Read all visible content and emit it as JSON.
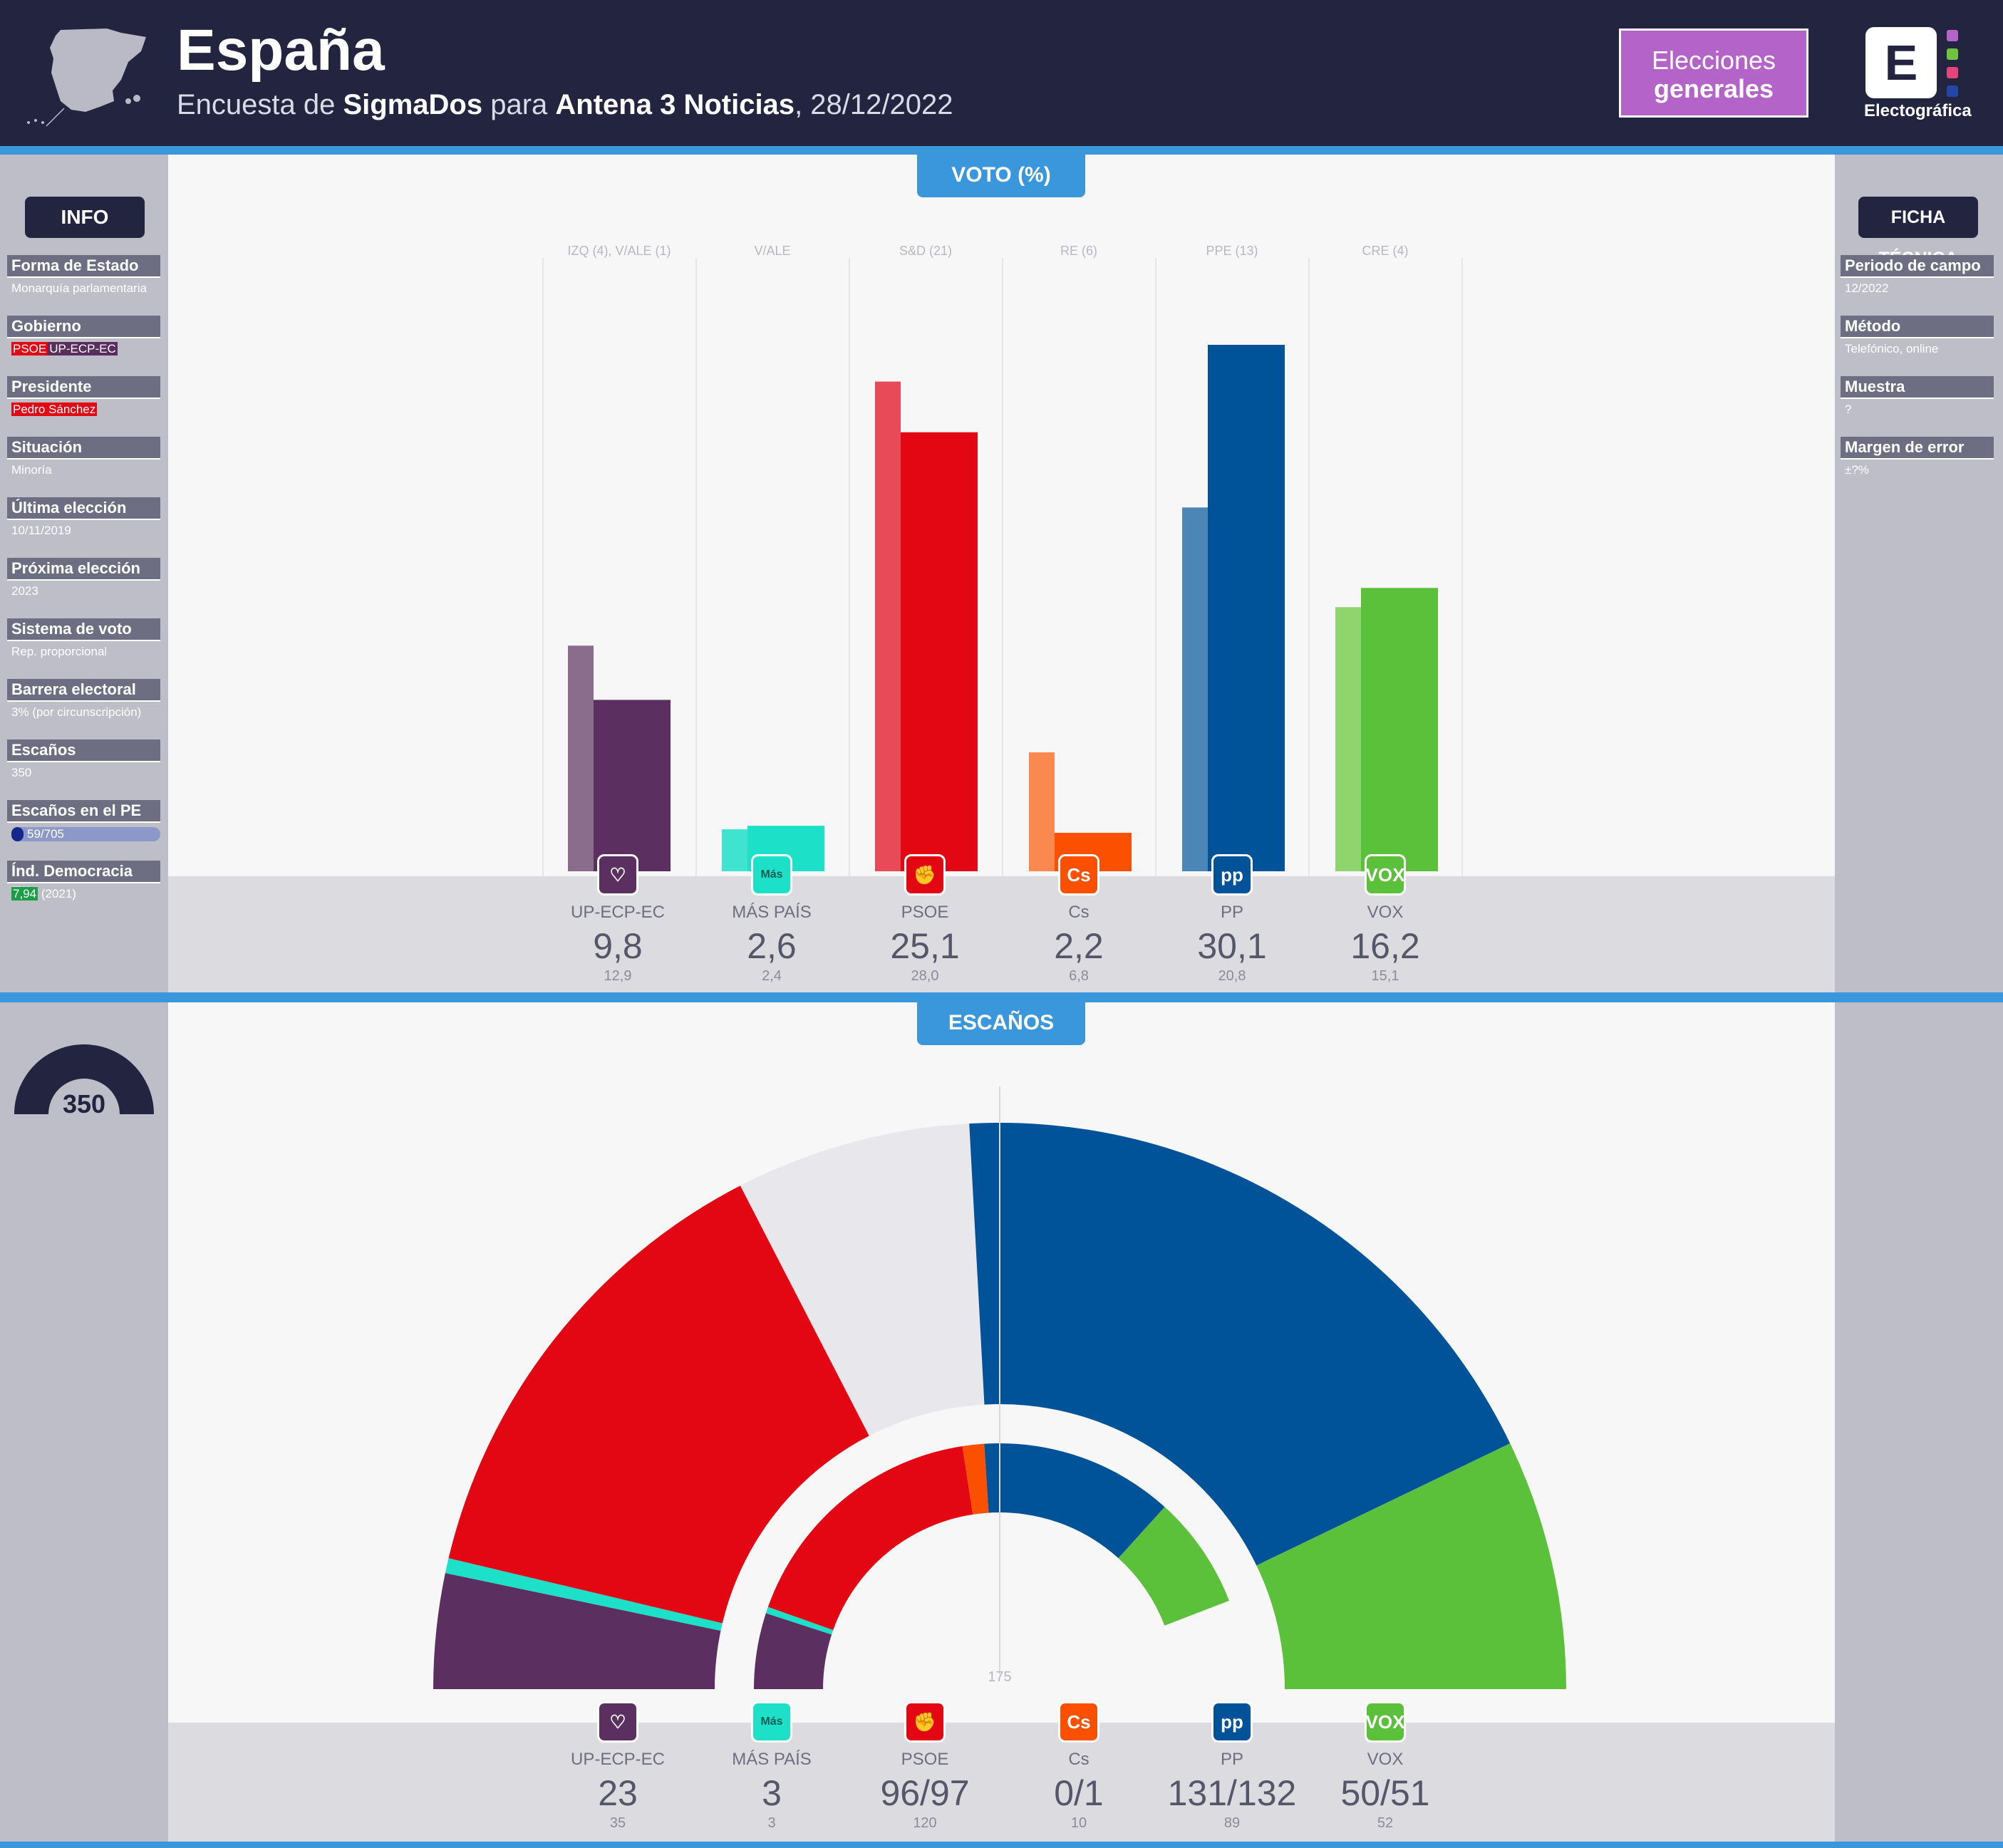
{
  "header": {
    "title": "España",
    "subtitle_prefix": "Encuesta de ",
    "pollster": "SigmaDos",
    "subtitle_mid": " para ",
    "media": "Antena 3 Noticias",
    "date": ", 28/12/2022",
    "election_type_line1": "Elecciones",
    "election_type_line2": "generales",
    "brand_letter": "E",
    "brand_name": "Electográfica"
  },
  "info": {
    "title": "INFO",
    "items": [
      {
        "label": "Forma de Estado",
        "value": "Monarquía parlamentaria"
      },
      {
        "label": "Gobierno",
        "tag1": "PSOE",
        "tag2": "UP-ECP-EC"
      },
      {
        "label": "Presidente",
        "tag1": "Pedro Sánchez"
      },
      {
        "label": "Situación",
        "value": "Minoría"
      },
      {
        "label": "Última elección",
        "value": "10/11/2019"
      },
      {
        "label": "Próxima elección",
        "value": "2023"
      },
      {
        "label": "Sistema de voto",
        "value": "Rep. proporcional"
      },
      {
        "label": "Barrera electoral",
        "value": "3% (por circunscripción)"
      },
      {
        "label": "Escaños",
        "value": "350"
      },
      {
        "label": "Escaños en el PE",
        "value": "59/705",
        "fraction": 0.0837
      },
      {
        "label": "Índ. Democracia EIU",
        "tag1": "7,94",
        "value": " (2021)"
      }
    ]
  },
  "ficha": {
    "title": "FICHA TÉCNICA",
    "items": [
      {
        "label": "Periodo de campo",
        "value": "12/2022"
      },
      {
        "label": "Método",
        "value": "Telefónico, online"
      },
      {
        "label": "Muestra",
        "value": "?"
      },
      {
        "label": "Margen de error",
        "value": "±?%"
      }
    ]
  },
  "sections": {
    "vote": "VOTO (%)",
    "seats": "ESCAÑOS"
  },
  "total_seats": "350",
  "majority_label": "175",
  "colors": {
    "upecpec": "#5b3060",
    "maspais": "#1de0c9",
    "psoe": "#e30613",
    "cs": "#fa5000",
    "pp": "#005399",
    "vox": "#5cc13a"
  },
  "chart_data": [
    {
      "type": "bar",
      "title": "VOTO (%)",
      "categories": [
        "UP-ECP-EC",
        "MÁS PAÍS",
        "PSOE",
        "Cs",
        "PP",
        "VOX"
      ],
      "groups": [
        "IZQ (4), V/ALE (1)",
        "V/ALE",
        "S&D (21)",
        "RE (6)",
        "PPE (13)",
        "CRE (4)"
      ],
      "series": [
        {
          "name": "previous",
          "values": [
            12.9,
            2.4,
            28.0,
            6.8,
            20.8,
            15.1
          ]
        },
        {
          "name": "current",
          "values": [
            9.8,
            2.6,
            25.1,
            2.2,
            30.1,
            16.2
          ]
        }
      ],
      "labels_current": [
        "9,8",
        "2,6",
        "25,1",
        "2,2",
        "30,1",
        "16,2"
      ],
      "labels_previous": [
        "12,9",
        "2,4",
        "28,0",
        "6,8",
        "20,8",
        "15,1"
      ],
      "ylim": [
        0,
        30.1
      ]
    },
    {
      "type": "pie",
      "title": "ESCAÑOS",
      "categories": [
        "UP-ECP-EC",
        "MÁS PAÍS",
        "PSOE",
        "Cs",
        "PP",
        "VOX"
      ],
      "series": [
        {
          "name": "current",
          "values_min": [
            23,
            3,
            96,
            0,
            131,
            50
          ],
          "values_max": [
            23,
            3,
            97,
            1,
            132,
            51
          ]
        },
        {
          "name": "previous",
          "values": [
            35,
            3,
            120,
            10,
            89,
            52
          ]
        }
      ],
      "labels_current": [
        "23",
        "3",
        "96/97",
        "0/1",
        "131/132",
        "50/51"
      ],
      "labels_previous": [
        "35",
        "3",
        "120",
        "10",
        "89",
        "52"
      ],
      "total": 350
    }
  ]
}
